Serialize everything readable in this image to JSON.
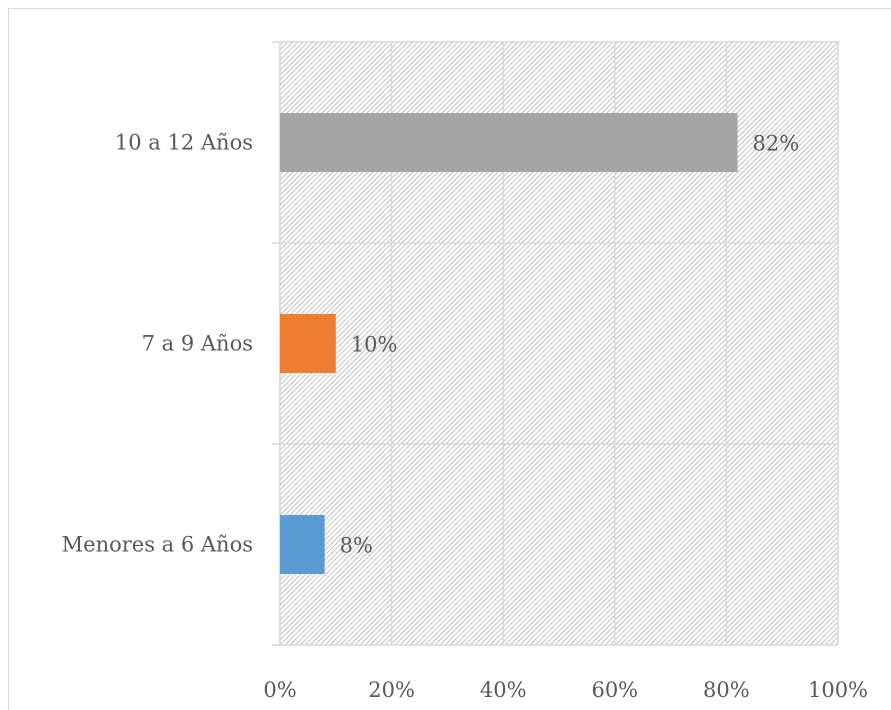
{
  "chart_data": {
    "type": "bar",
    "orientation": "horizontal",
    "categories": [
      "10 a 12 Años",
      "7 a 9 Años",
      "Menores a 6 Años"
    ],
    "values": [
      0.82,
      0.1,
      0.08
    ],
    "data_labels": [
      "82%",
      "10%",
      "8%"
    ],
    "colors": [
      "#a5a5a5",
      "#ed7d31",
      "#5b9bd5"
    ],
    "xlim": [
      0,
      1
    ],
    "xticks": [
      0,
      0.2,
      0.4,
      0.6,
      0.8,
      1.0
    ],
    "xtick_labels": [
      "0%",
      "20%",
      "40%",
      "60%",
      "80%",
      "100%"
    ],
    "grid": true,
    "plot_background": "diagonal hatch pattern",
    "legend": "none"
  }
}
